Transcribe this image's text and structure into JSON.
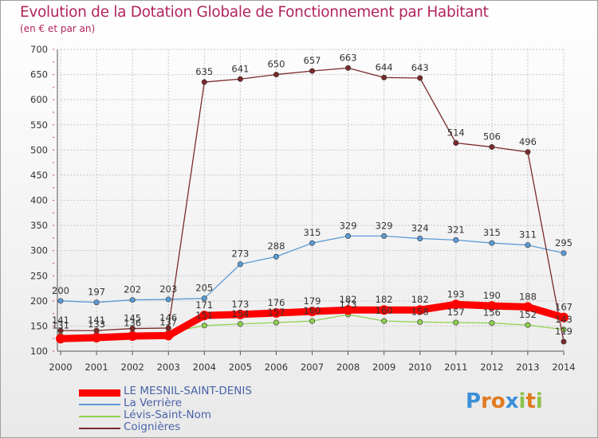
{
  "header": {
    "title": "Evolution de la Dotation Globale de Fonctionnement par Habitant",
    "subtitle": "(en € et par an)"
  },
  "logo": {
    "text": "Proxiti"
  },
  "chart_data": {
    "type": "line",
    "title": "Evolution de la Dotation Globale de Fonctionnement par Habitant",
    "subtitle": "(en € et par an)",
    "xlabel": "",
    "ylabel": "",
    "ylim": [
      100,
      700
    ],
    "yticks": [
      100,
      150,
      200,
      250,
      300,
      350,
      400,
      450,
      500,
      550,
      600,
      650,
      700
    ],
    "grid": true,
    "legend_position": "bottom-left",
    "x": [
      "2000",
      "2001",
      "2002",
      "2003",
      "2004",
      "2005",
      "2006",
      "2007",
      "2008",
      "2009",
      "2010",
      "2011",
      "2012",
      "2013",
      "2014"
    ],
    "series": [
      {
        "name": "LE MESNIL-SAINT-DENIS",
        "color": "#ff0000",
        "values": [
          125,
          127,
          130,
          131,
          171,
          173,
          176,
          179,
          182,
          182,
          182,
          193,
          190,
          188,
          167
        ],
        "labels": [
          "",
          "",
          "",
          "",
          "171",
          "173",
          "176",
          "179",
          "182",
          "182",
          "182",
          "193",
          "190",
          "188",
          "167"
        ]
      },
      {
        "name": "La Verrière",
        "color": "#5b9bd5",
        "values": [
          200,
          197,
          202,
          203,
          205,
          273,
          288,
          315,
          329,
          329,
          324,
          321,
          315,
          311,
          295
        ],
        "labels": [
          "200",
          "197",
          "202",
          "203",
          "205",
          "273",
          "288",
          "315",
          "329",
          "329",
          "324",
          "321",
          "315",
          "311",
          "295"
        ]
      },
      {
        "name": "Lévis-Saint-Nom",
        "color": "#8fd14f",
        "values": [
          131,
          133,
          136,
          137,
          151,
          154,
          157,
          160,
          173,
          160,
          158,
          157,
          156,
          152,
          143
        ],
        "labels": [
          "131",
          "133",
          "136",
          "137",
          "151",
          "154",
          "157",
          "160",
          "173",
          "160",
          "158",
          "157",
          "156",
          "152",
          "143"
        ]
      },
      {
        "name": "Coignières",
        "color": "#7b2a2a",
        "values": [
          141,
          141,
          145,
          146,
          635,
          641,
          650,
          657,
          663,
          644,
          643,
          514,
          506,
          496,
          119
        ],
        "labels": [
          "141",
          "141",
          "145",
          "146",
          "635",
          "641",
          "650",
          "657",
          "663",
          "644",
          "643",
          "514",
          "506",
          "496",
          "119"
        ]
      }
    ]
  }
}
